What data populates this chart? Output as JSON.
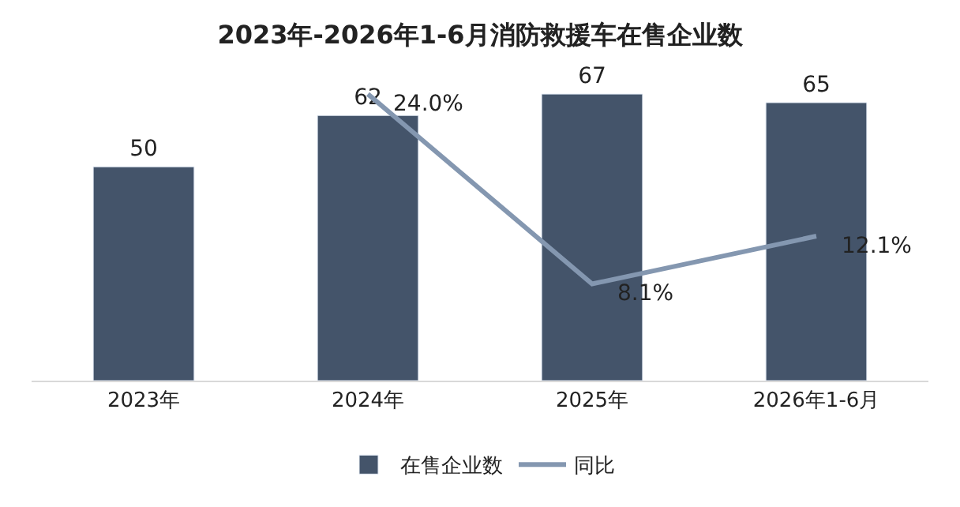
{
  "chart_data": {
    "type": "bar",
    "title": "2023年-2026年1-6月消防救援车在售企业数",
    "categories": [
      "2023年",
      "2024年",
      "2025年",
      "2026年1-6月"
    ],
    "series": [
      {
        "name": "在售企业数",
        "color": "#44546a",
        "values": [
          50,
          62,
          67,
          65
        ]
      },
      {
        "name": "同比",
        "type": "line",
        "axis": "y2",
        "color": "#8497b0",
        "values": [
          null,
          24.0,
          8.1,
          12.1
        ],
        "value_labels": [
          null,
          "24.0%",
          "8.1%",
          "12.1%"
        ]
      }
    ],
    "data_labels": true,
    "tick_labels": "x",
    "legend": "bottom",
    "marker": "none",
    "line_style": "solid"
  }
}
